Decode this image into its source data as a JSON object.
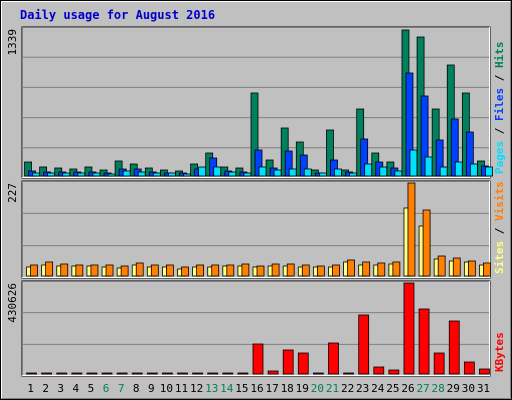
{
  "title": "Daily usage for August 2016",
  "colors": {
    "hits": "#00805c",
    "files": "#0040ff",
    "pages": "#00e0ff",
    "visits": "#ff8000",
    "sites": "#ffff80",
    "kbytes": "#ff0000",
    "weekend_label": "#00805c",
    "panel_bg": "#c0c0c0",
    "grid": "#808080"
  },
  "chart_data": [
    {
      "type": "bar",
      "panel": "hits-files-pages",
      "ymax_label": "1339",
      "legend": [
        {
          "label": "Pages",
          "color": "#00e0ff"
        },
        {
          "label": "Files",
          "color": "#0040ff"
        },
        {
          "label": "Hits",
          "color": "#00805c"
        }
      ],
      "categories": [
        "1",
        "2",
        "3",
        "4",
        "5",
        "6",
        "7",
        "8",
        "9",
        "10",
        "11",
        "12",
        "13",
        "14",
        "15",
        "16",
        "17",
        "18",
        "19",
        "20",
        "21",
        "22",
        "23",
        "24",
        "25",
        "26",
        "27",
        "28",
        "29",
        "30",
        "31"
      ],
      "weekend_categories": [
        "6",
        "7",
        "13",
        "14",
        "20",
        "21",
        "27",
        "28"
      ],
      "ylim": [
        0,
        1339
      ],
      "series": [
        {
          "name": "Hits",
          "values": [
            130,
            80,
            75,
            65,
            85,
            55,
            140,
            105,
            70,
            55,
            45,
            105,
            210,
            85,
            75,
            760,
            145,
            440,
            310,
            55,
            420,
            55,
            610,
            210,
            125,
            1330,
            1270,
            610,
            1010,
            760,
            140
          ]
        },
        {
          "name": "Files",
          "values": [
            50,
            40,
            35,
            35,
            40,
            25,
            65,
            60,
            35,
            30,
            25,
            60,
            160,
            50,
            40,
            240,
            70,
            230,
            190,
            30,
            150,
            35,
            340,
            130,
            70,
            935,
            730,
            330,
            520,
            400,
            90
          ]
        },
        {
          "name": "Pages",
          "values": [
            30,
            30,
            25,
            25,
            30,
            20,
            45,
            40,
            30,
            25,
            20,
            80,
            80,
            40,
            30,
            80,
            55,
            65,
            60,
            25,
            60,
            30,
            110,
            80,
            50,
            240,
            175,
            85,
            130,
            110,
            85
          ]
        }
      ]
    },
    {
      "type": "bar",
      "panel": "visits-sites",
      "ymax_label": "227",
      "legend": [
        {
          "label": "Sites",
          "color": "#ffff80"
        },
        {
          "label": "Visits",
          "color": "#ff8000"
        }
      ],
      "categories": [
        "1",
        "2",
        "3",
        "4",
        "5",
        "6",
        "7",
        "8",
        "9",
        "10",
        "11",
        "12",
        "13",
        "14",
        "15",
        "16",
        "17",
        "18",
        "19",
        "20",
        "21",
        "22",
        "23",
        "24",
        "25",
        "26",
        "27",
        "28",
        "29",
        "30",
        "31"
      ],
      "ylim": [
        0,
        227
      ],
      "series": [
        {
          "name": "Sites",
          "values": [
            22,
            28,
            25,
            24,
            24,
            23,
            20,
            26,
            22,
            23,
            17,
            22,
            22,
            24,
            25,
            22,
            25,
            25,
            22,
            22,
            22,
            33,
            27,
            28,
            30,
            165,
            122,
            42,
            37,
            33,
            28
          ]
        },
        {
          "name": "Visits",
          "values": [
            27,
            33,
            29,
            28,
            28,
            26,
            24,
            31,
            26,
            27,
            21,
            26,
            27,
            28,
            29,
            25,
            29,
            29,
            26,
            25,
            26,
            39,
            33,
            32,
            34,
            227,
            160,
            48,
            43,
            37,
            32
          ]
        }
      ]
    },
    {
      "type": "bar",
      "panel": "kbytes",
      "ymax_label": "430626",
      "legend": [
        {
          "label": "KBytes",
          "color": "#ff0000"
        }
      ],
      "categories": [
        "1",
        "2",
        "3",
        "4",
        "5",
        "6",
        "7",
        "8",
        "9",
        "10",
        "11",
        "12",
        "13",
        "14",
        "15",
        "16",
        "17",
        "18",
        "19",
        "20",
        "21",
        "22",
        "23",
        "24",
        "25",
        "26",
        "27",
        "28",
        "29",
        "30",
        "31"
      ],
      "ylim": [
        0,
        430626
      ],
      "series": [
        {
          "name": "KBytes",
          "values": [
            2000,
            2000,
            2000,
            2000,
            2000,
            2000,
            2000,
            2000,
            2000,
            2000,
            2000,
            2000,
            2000,
            2000,
            2000,
            140000,
            12000,
            112000,
            100000,
            6000,
            148000,
            4000,
            278000,
            35000,
            18000,
            430626,
            308000,
            100000,
            250000,
            55000,
            25000
          ]
        }
      ]
    }
  ]
}
